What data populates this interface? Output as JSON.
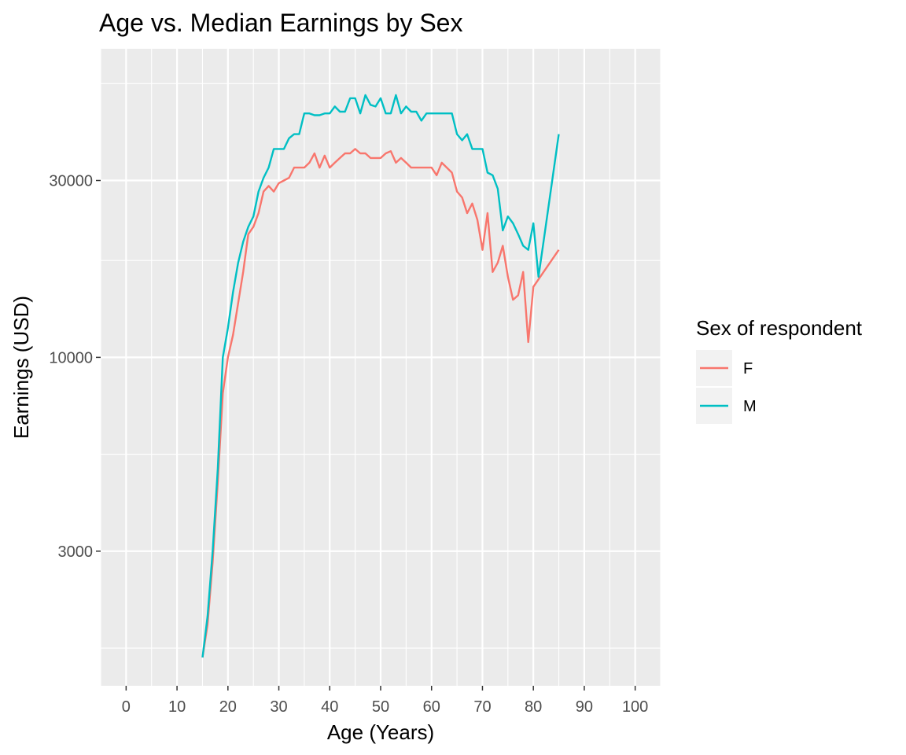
{
  "chart_data": {
    "type": "line",
    "title": "Age vs. Median Earnings by Sex",
    "xlabel": "Age (Years)",
    "ylabel": "Earnings (USD)",
    "y_scale": "log10",
    "xlim": [
      -5,
      105
    ],
    "ylim": [
      1300,
      68000
    ],
    "x_ticks": [
      0,
      10,
      20,
      30,
      40,
      50,
      60,
      70,
      80,
      90,
      100
    ],
    "x_tick_labels": [
      "0",
      "10",
      "20",
      "30",
      "40",
      "50",
      "60",
      "70",
      "80",
      "90",
      "100"
    ],
    "y_ticks": [
      3000,
      10000,
      30000
    ],
    "y_tick_labels": [
      "3000",
      "10000",
      "30000"
    ],
    "y_minor_ticks": [
      1643,
      5477,
      18257,
      54772
    ],
    "grid": true,
    "legend": {
      "title": "Sex of respondent",
      "placement": "right"
    },
    "series": [
      {
        "name": "F",
        "color": "#f8766d",
        "points": [
          [
            15,
            1550
          ],
          [
            16,
            1900
          ],
          [
            17,
            2800
          ],
          [
            18,
            4600
          ],
          [
            19,
            8000
          ],
          [
            20,
            10000
          ],
          [
            21,
            11500
          ],
          [
            22,
            14000
          ],
          [
            23,
            17000
          ],
          [
            24,
            21500
          ],
          [
            25,
            22500
          ],
          [
            26,
            24500
          ],
          [
            27,
            28000
          ],
          [
            28,
            29000
          ],
          [
            29,
            28000
          ],
          [
            30,
            29500
          ],
          [
            31,
            30000
          ],
          [
            32,
            30500
          ],
          [
            33,
            32500
          ],
          [
            34,
            32500
          ],
          [
            35,
            32500
          ],
          [
            36,
            33500
          ],
          [
            37,
            35500
          ],
          [
            38,
            32500
          ],
          [
            39,
            35000
          ],
          [
            40,
            32500
          ],
          [
            41,
            33500
          ],
          [
            42,
            34500
          ],
          [
            43,
            35500
          ],
          [
            44,
            35500
          ],
          [
            45,
            36500
          ],
          [
            46,
            35500
          ],
          [
            47,
            35500
          ],
          [
            48,
            34500
          ],
          [
            49,
            34500
          ],
          [
            50,
            34500
          ],
          [
            51,
            35500
          ],
          [
            52,
            36000
          ],
          [
            53,
            33500
          ],
          [
            54,
            34500
          ],
          [
            55,
            33500
          ],
          [
            56,
            32500
          ],
          [
            57,
            32500
          ],
          [
            58,
            32500
          ],
          [
            59,
            32500
          ],
          [
            60,
            32500
          ],
          [
            61,
            31000
          ],
          [
            62,
            33500
          ],
          [
            63,
            32500
          ],
          [
            64,
            31500
          ],
          [
            65,
            28000
          ],
          [
            66,
            27000
          ],
          [
            67,
            24500
          ],
          [
            68,
            26000
          ],
          [
            69,
            23500
          ],
          [
            70,
            19500
          ],
          [
            71,
            24500
          ],
          [
            72,
            17000
          ],
          [
            73,
            18000
          ],
          [
            74,
            20000
          ],
          [
            75,
            16500
          ],
          [
            76,
            14300
          ],
          [
            77,
            14700
          ],
          [
            78,
            17000
          ],
          [
            79,
            11000
          ],
          [
            80,
            15500
          ],
          [
            85,
            19500
          ]
        ]
      },
      {
        "name": "M",
        "color": "#00bfc4",
        "points": [
          [
            15,
            1550
          ],
          [
            16,
            2000
          ],
          [
            17,
            3000
          ],
          [
            18,
            5000
          ],
          [
            19,
            10000
          ],
          [
            20,
            12000
          ],
          [
            21,
            15000
          ],
          [
            22,
            18000
          ],
          [
            23,
            20500
          ],
          [
            24,
            22500
          ],
          [
            25,
            24000
          ],
          [
            26,
            28000
          ],
          [
            27,
            30500
          ],
          [
            28,
            32500
          ],
          [
            29,
            36500
          ],
          [
            30,
            36500
          ],
          [
            31,
            36500
          ],
          [
            32,
            39000
          ],
          [
            33,
            40000
          ],
          [
            34,
            40000
          ],
          [
            35,
            45500
          ],
          [
            36,
            45500
          ],
          [
            37,
            45000
          ],
          [
            38,
            45000
          ],
          [
            39,
            45500
          ],
          [
            40,
            45500
          ],
          [
            41,
            47500
          ],
          [
            42,
            46000
          ],
          [
            43,
            46000
          ],
          [
            44,
            50000
          ],
          [
            45,
            50000
          ],
          [
            46,
            45500
          ],
          [
            47,
            51000
          ],
          [
            48,
            48000
          ],
          [
            49,
            47500
          ],
          [
            50,
            50000
          ],
          [
            51,
            45500
          ],
          [
            52,
            45500
          ],
          [
            53,
            51000
          ],
          [
            54,
            45500
          ],
          [
            55,
            47500
          ],
          [
            56,
            46000
          ],
          [
            57,
            46000
          ],
          [
            58,
            43500
          ],
          [
            59,
            45500
          ],
          [
            60,
            45500
          ],
          [
            61,
            45500
          ],
          [
            62,
            45500
          ],
          [
            63,
            45500
          ],
          [
            64,
            45500
          ],
          [
            65,
            40000
          ],
          [
            66,
            38500
          ],
          [
            67,
            40000
          ],
          [
            68,
            36500
          ],
          [
            69,
            36500
          ],
          [
            70,
            36500
          ],
          [
            71,
            31500
          ],
          [
            72,
            31000
          ],
          [
            73,
            28500
          ],
          [
            74,
            22000
          ],
          [
            75,
            24000
          ],
          [
            76,
            23000
          ],
          [
            77,
            21500
          ],
          [
            78,
            20000
          ],
          [
            79,
            19500
          ],
          [
            80,
            23000
          ],
          [
            81,
            16500
          ],
          [
            82,
            20500
          ],
          [
            85,
            40000
          ]
        ]
      }
    ]
  }
}
